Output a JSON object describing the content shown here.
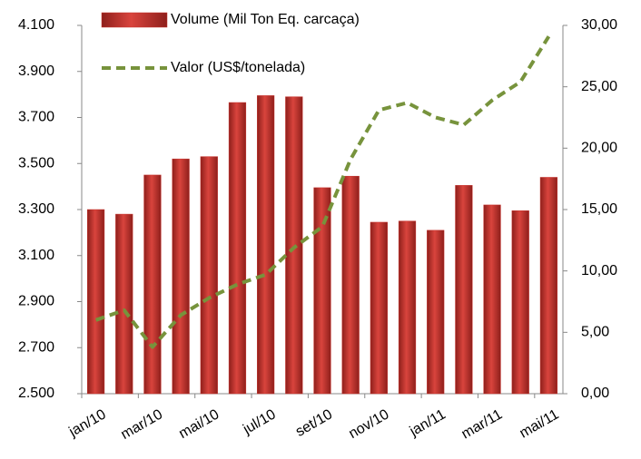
{
  "chart_data": {
    "type": "bar",
    "categories": [
      "jan/10",
      null,
      "mar/10",
      null,
      "mai/10",
      null,
      "jul/10",
      null,
      "set/10",
      null,
      "nov/10",
      null,
      "jan/11",
      null,
      "mar/11",
      null,
      "mai/11"
    ],
    "series": [
      {
        "name": "Volume (Mil Ton Eq. carcaça)",
        "type": "bar",
        "axis": "y",
        "color": "#c8332d",
        "values": [
          3300,
          3280,
          3450,
          3520,
          3530,
          3765,
          3795,
          3790,
          3395,
          3445,
          3245,
          3250,
          3210,
          3405,
          3320,
          3295,
          3440
        ]
      },
      {
        "name": "Valor (US$/tonelada)",
        "type": "line",
        "axis": "y2",
        "color": "#77933c",
        "values": [
          6.0,
          6.8,
          3.8,
          6.4,
          7.8,
          8.9,
          9.7,
          11.9,
          13.6,
          19.1,
          23.1,
          23.7,
          22.5,
          21.9,
          23.9,
          25.4,
          29.1
        ]
      }
    ],
    "ylim": [
      2500,
      4100
    ],
    "yticks": [
      {
        "value": 2500,
        "label": "2.500"
      },
      {
        "value": 2700,
        "label": "2.700"
      },
      {
        "value": 2900,
        "label": "2.900"
      },
      {
        "value": 3100,
        "label": "3.100"
      },
      {
        "value": 3300,
        "label": "3.300"
      },
      {
        "value": 3500,
        "label": "3.500"
      },
      {
        "value": 3700,
        "label": "3.700"
      },
      {
        "value": 3900,
        "label": "3.900"
      },
      {
        "value": 4100,
        "label": "4.100"
      }
    ],
    "y2lim": [
      0,
      30
    ],
    "y2ticks": [
      {
        "value": 0,
        "label": "0,00"
      },
      {
        "value": 5,
        "label": "5,00"
      },
      {
        "value": 10,
        "label": "10,00"
      },
      {
        "value": 15,
        "label": "15,00"
      },
      {
        "value": 20,
        "label": "20,00"
      },
      {
        "value": 25,
        "label": "25,00"
      },
      {
        "value": 30,
        "label": "30,00"
      }
    ],
    "y_color": "#77933c",
    "y2_color": "#c00000",
    "grid": false,
    "legend": "upper left"
  }
}
